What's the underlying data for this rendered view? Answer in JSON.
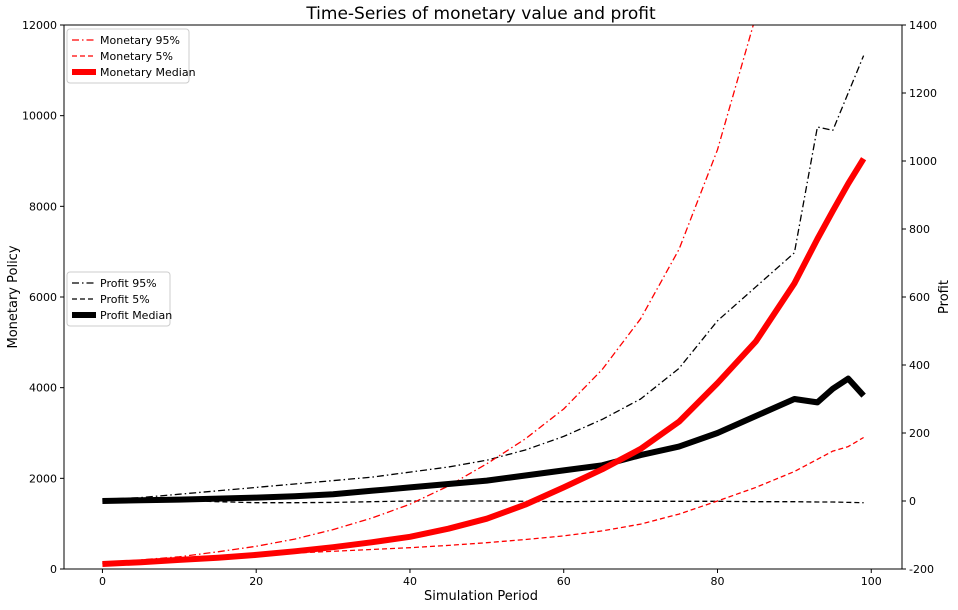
{
  "chart_data": {
    "type": "line",
    "title": "Time-Series of monetary value and profit",
    "xlabel": "Simulation Period",
    "ylabel_left": "Monetary Policy",
    "ylabel_right": "Profit",
    "xlim": [
      -5,
      104
    ],
    "ylim_left": [
      0,
      12000
    ],
    "ylim_right": [
      -200,
      1400
    ],
    "xticks": [
      0,
      20,
      40,
      60,
      80,
      100
    ],
    "yticks_left": [
      0,
      2000,
      4000,
      6000,
      8000,
      10000,
      12000
    ],
    "yticks_right": [
      -200,
      0,
      200,
      400,
      600,
      800,
      1000,
      1200,
      1400
    ],
    "grid": false,
    "legends": [
      {
        "placement": "top-left",
        "entries": [
          "Monetary 95%",
          "Monetary 5%",
          "Monetary Median"
        ]
      },
      {
        "placement": "center-left",
        "entries": [
          "Profit 95%",
          "Profit 5%",
          "Profit Median"
        ]
      }
    ],
    "x": [
      0,
      5,
      10,
      15,
      20,
      25,
      30,
      35,
      40,
      45,
      50,
      55,
      60,
      65,
      70,
      75,
      80,
      85,
      90,
      93,
      95,
      97,
      99
    ],
    "series": [
      {
        "name": "Monetary 95%",
        "axis": "left",
        "color": "#ff0000",
        "style": "dashdot",
        "width": 1.3,
        "values": [
          130,
          200,
          270,
          380,
          500,
          660,
          870,
          1120,
          1430,
          1830,
          2320,
          2870,
          3530,
          4400,
          5520,
          7050,
          9250,
          12200,
          null,
          null,
          null,
          null,
          null
        ]
      },
      {
        "name": "Monetary 5%",
        "axis": "left",
        "color": "#ff0000",
        "style": "dashed",
        "width": 1.3,
        "values": [
          120,
          160,
          210,
          260,
          310,
          350,
          390,
          430,
          470,
          520,
          580,
          650,
          730,
          840,
          990,
          1210,
          1500,
          1800,
          2150,
          2420,
          2600,
          2700,
          2900
        ]
      },
      {
        "name": "Monetary Median",
        "axis": "left",
        "color": "#ff0000",
        "style": "solid",
        "width": 6,
        "values": [
          110,
          150,
          200,
          250,
          310,
          390,
          480,
          590,
          710,
          890,
          1110,
          1420,
          1800,
          2200,
          2650,
          3250,
          4100,
          5020,
          6300,
          7280,
          7900,
          8500,
          9050
        ]
      },
      {
        "name": "Profit 95%",
        "axis": "right",
        "color": "#000000",
        "style": "dashdot",
        "width": 1.3,
        "values": [
          5,
          10,
          20,
          30,
          40,
          50,
          60,
          70,
          85,
          100,
          120,
          150,
          190,
          240,
          300,
          390,
          530,
          630,
          730,
          1100,
          1090,
          1200,
          1310
        ]
      },
      {
        "name": "Profit 5%",
        "axis": "right",
        "color": "#000000",
        "style": "dashed",
        "width": 1.3,
        "values": [
          0,
          1,
          2,
          -2,
          -5,
          -5,
          -4,
          -2,
          0,
          0,
          0,
          -1,
          -2,
          -1,
          -1,
          -1,
          -1,
          -2,
          -2,
          -3,
          -3,
          -4,
          -5
        ]
      },
      {
        "name": "Profit Median",
        "axis": "right",
        "color": "#000000",
        "style": "solid",
        "width": 6,
        "values": [
          0,
          2,
          4,
          7,
          10,
          14,
          20,
          30,
          40,
          50,
          60,
          75,
          90,
          105,
          135,
          160,
          200,
          250,
          300,
          290,
          330,
          360,
          310
        ]
      }
    ]
  }
}
